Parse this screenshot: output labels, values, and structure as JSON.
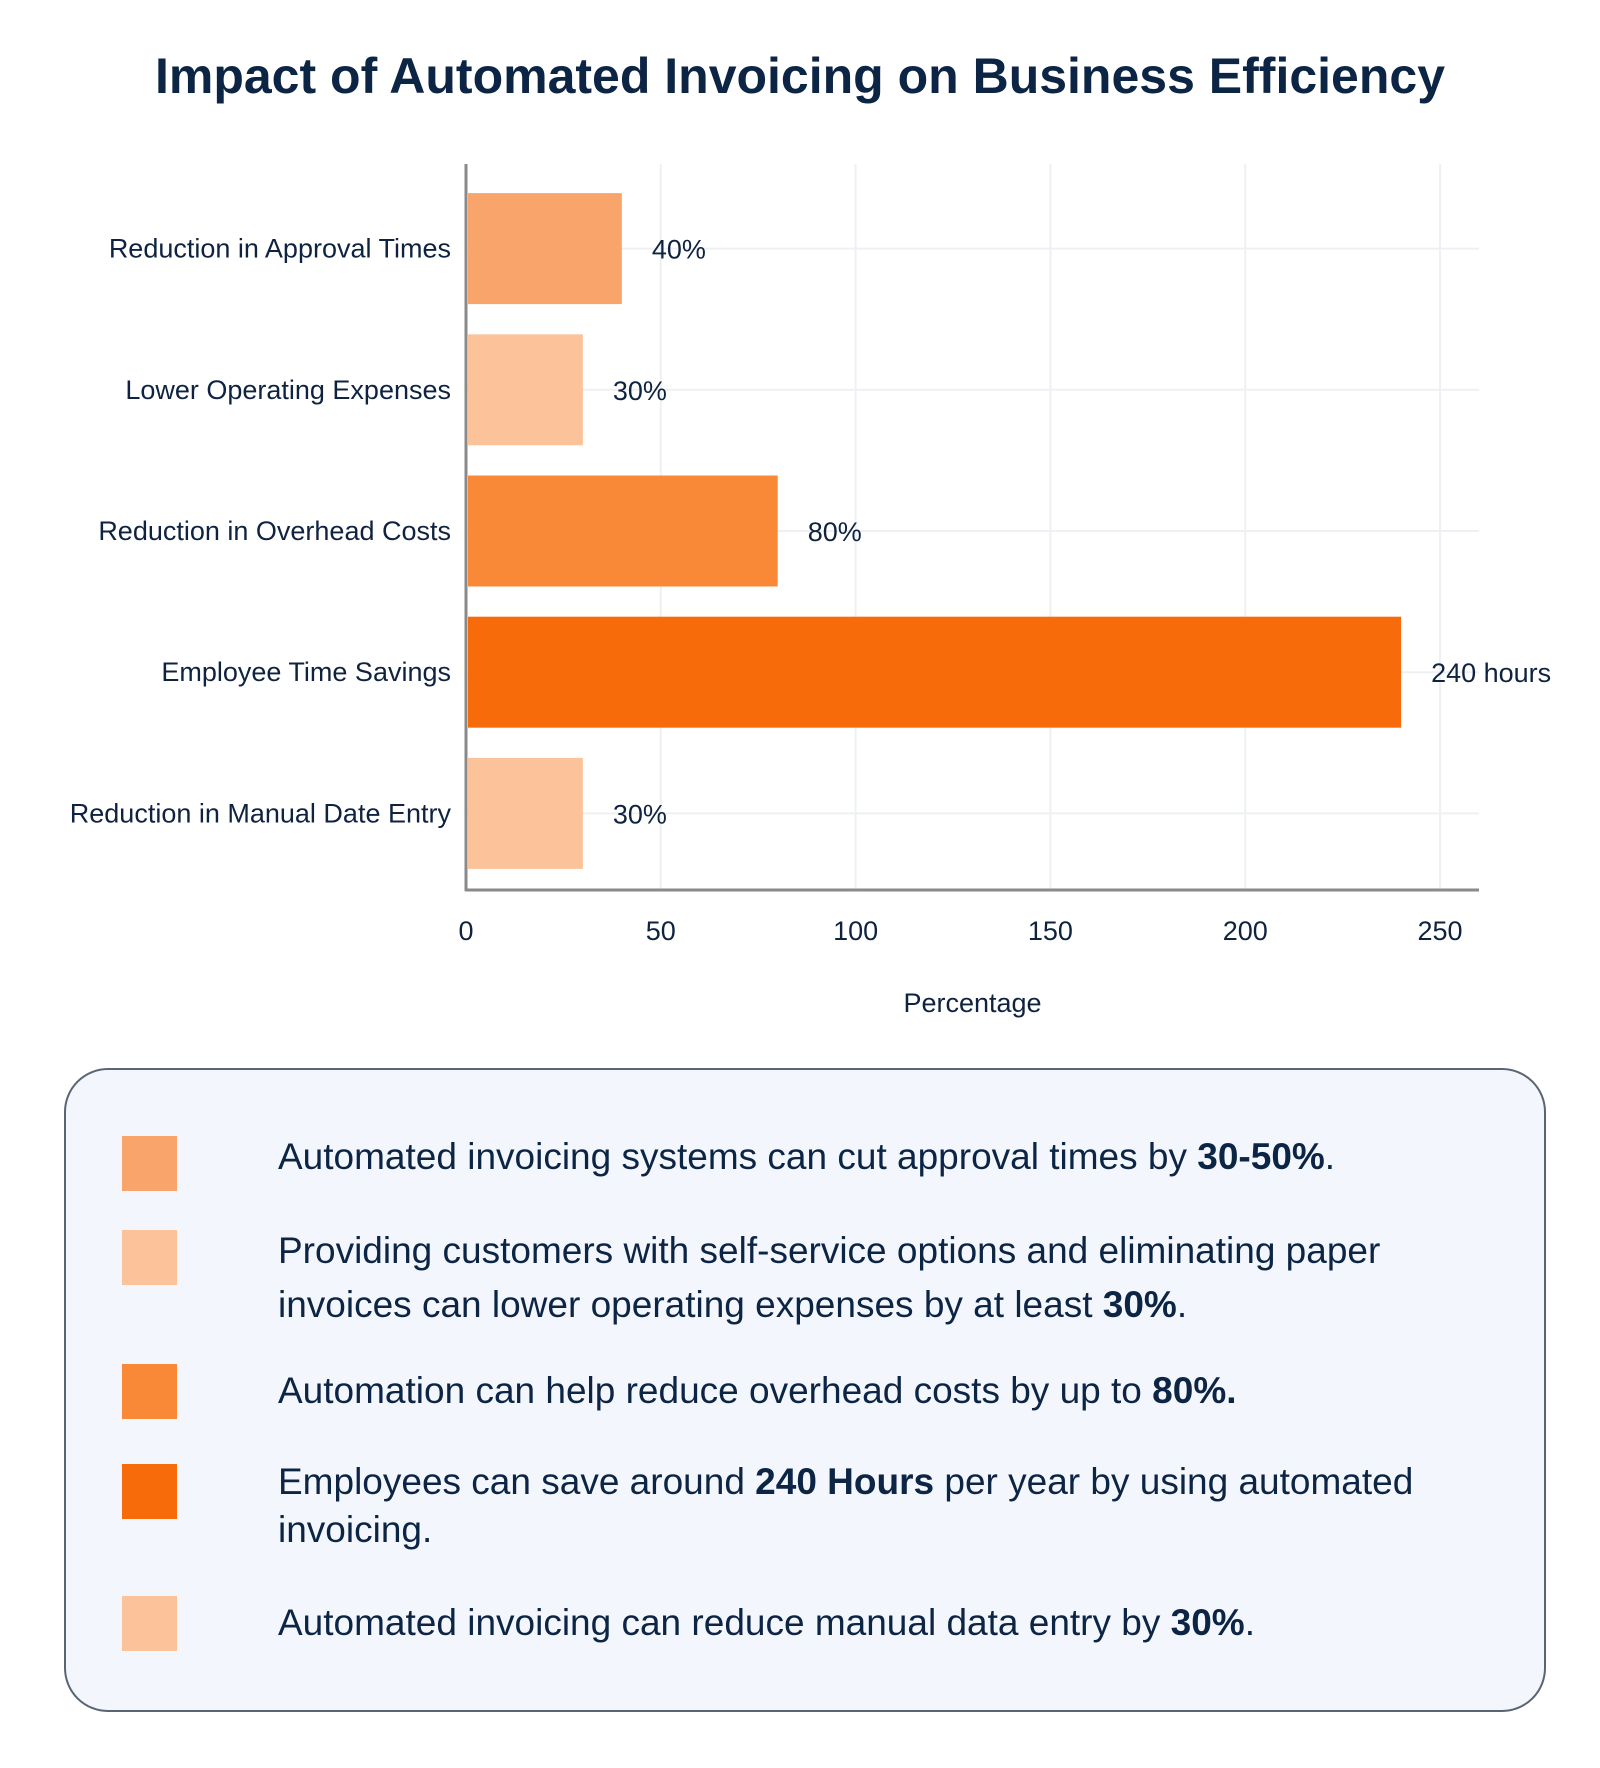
{
  "title": "Impact of Automated Invoicing on Business Efficiency",
  "chart_data": {
    "type": "bar",
    "orientation": "horizontal",
    "categories": [
      "Reduction in Approval Times",
      "Lower Operating Expenses",
      "Reduction in Overhead Costs",
      "Employee Time Savings",
      "Reduction in Manual Date Entry"
    ],
    "values": [
      40,
      30,
      80,
      240,
      30
    ],
    "value_labels": [
      "40%",
      "30%",
      "80%",
      "240 hours",
      "30%"
    ],
    "colors": [
      "#f9a46b",
      "#fcc39b",
      "#f98937",
      "#f76b0a",
      "#fcc39b"
    ],
    "xlabel": "Percentage",
    "xlim": [
      0,
      260
    ],
    "xticks": [
      0,
      50,
      100,
      150,
      200,
      250
    ],
    "grid": true
  },
  "notes": [
    {
      "color": "#f9a46b",
      "text_before": "Automated invoicing systems can cut approval times by ",
      "bold": "30-50%",
      "text_after": "."
    },
    {
      "color": "#fcc39b",
      "text_before": "Providing customers with self-service options and eliminating paper invoices can lower operating expenses by at least ",
      "bold": "30%",
      "text_after": "."
    },
    {
      "color": "#f98937",
      "text_before": "Automation can help reduce overhead costs by up to ",
      "bold": "80%.",
      "text_after": ""
    },
    {
      "color": "#f76b0a",
      "text_before": "Employees can save around ",
      "bold": "240 Hours",
      "text_after": " per year by using automated invoicing."
    },
    {
      "color": "#fcc39b",
      "text_before": "Automated invoicing can reduce manual data entry by ",
      "bold": "30%",
      "text_after": "."
    }
  ]
}
